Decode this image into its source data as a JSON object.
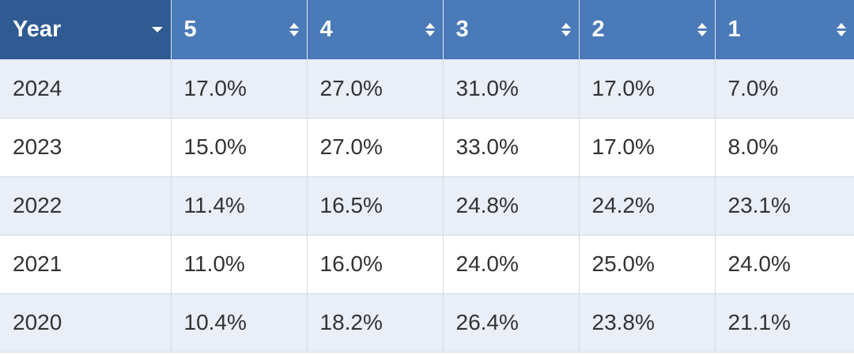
{
  "table": {
    "columns": [
      "Year",
      "5",
      "4",
      "3",
      "2",
      "1"
    ],
    "rows": [
      [
        "2024",
        "17.0%",
        "27.0%",
        "31.0%",
        "17.0%",
        "7.0%"
      ],
      [
        "2023",
        "15.0%",
        "27.0%",
        "33.0%",
        "17.0%",
        "8.0%"
      ],
      [
        "2022",
        "11.4%",
        "16.5%",
        "24.8%",
        "24.2%",
        "23.1%"
      ],
      [
        "2021",
        "11.0%",
        "16.0%",
        "24.0%",
        "25.0%",
        "24.0%"
      ],
      [
        "2020",
        "10.4%",
        "18.2%",
        "26.4%",
        "23.8%",
        "21.1%"
      ]
    ]
  },
  "icons": {
    "year_column": "dropdown-icon",
    "value_columns": "sort-icon"
  },
  "colors": {
    "header_year": "#2f5b92",
    "header": "#4a7ab8",
    "row_shaded": "#e9eef7",
    "row_plain": "#ffffff",
    "text": "#333333"
  }
}
